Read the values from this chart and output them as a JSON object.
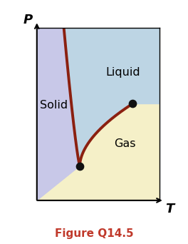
{
  "title": "Figure Q14.5",
  "title_color": "#c0392b",
  "title_fontsize": 11,
  "xlabel": "T",
  "ylabel": "P",
  "axis_label_fontsize": 13,
  "bg_color": "#ffffff",
  "solid_color": "#c8c8e8",
  "liquid_color": "#bdd5e4",
  "gas_color": "#f5f0c8",
  "line_color": "#8b2010",
  "line_width": 2.8,
  "triple_point": [
    0.35,
    0.2
  ],
  "critical_point": [
    0.78,
    0.56
  ],
  "label_solid": "Solid",
  "label_liquid": "Liquid",
  "label_gas": "Gas",
  "label_fontsize": 11.5,
  "dot_size": 55,
  "dot_color": "#111111"
}
